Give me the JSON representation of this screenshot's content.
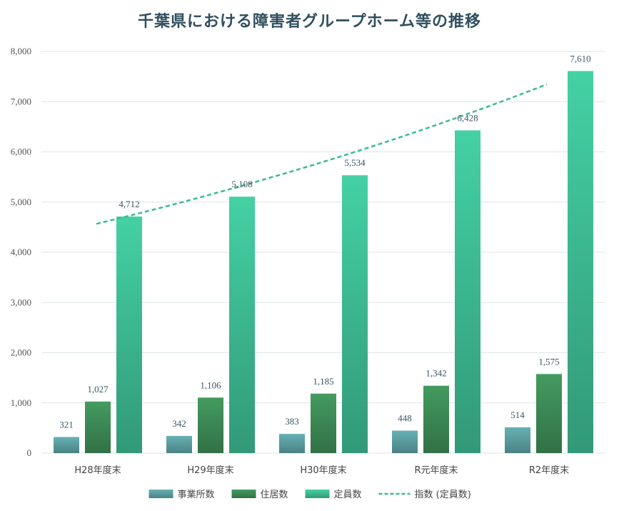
{
  "chart_data": {
    "type": "bar",
    "title": "千葉県における障害者グループホーム等の推移",
    "categories": [
      "H28年度末",
      "H29年度末",
      "H30年度末",
      "R元年度末",
      "R2年度末"
    ],
    "series": [
      {
        "name": "事業所数",
        "values": [
          321,
          342,
          383,
          448,
          514
        ],
        "color": "#5b9ea1"
      },
      {
        "name": "住居数",
        "values": [
          1027,
          1106,
          1185,
          1342,
          1575
        ],
        "color": "#3d8a55"
      },
      {
        "name": "定員数",
        "values": [
          4712,
          5108,
          5534,
          6428,
          7610
        ],
        "color": "#3dbb92"
      }
    ],
    "trendline": {
      "name": "指数 (定員数)",
      "type": "exponential",
      "based_on": "定員数",
      "style": "dashed",
      "color": "#3dbb92"
    },
    "ylim": [
      0,
      8000
    ],
    "yticks": [
      0,
      1000,
      2000,
      3000,
      4000,
      5000,
      6000,
      7000,
      8000
    ],
    "ytick_labels": [
      "0",
      "1,000",
      "2,000",
      "3,000",
      "4,000",
      "5,000",
      "6,000",
      "7,000",
      "8,000"
    ],
    "grid": true,
    "legend_position": "bottom"
  }
}
